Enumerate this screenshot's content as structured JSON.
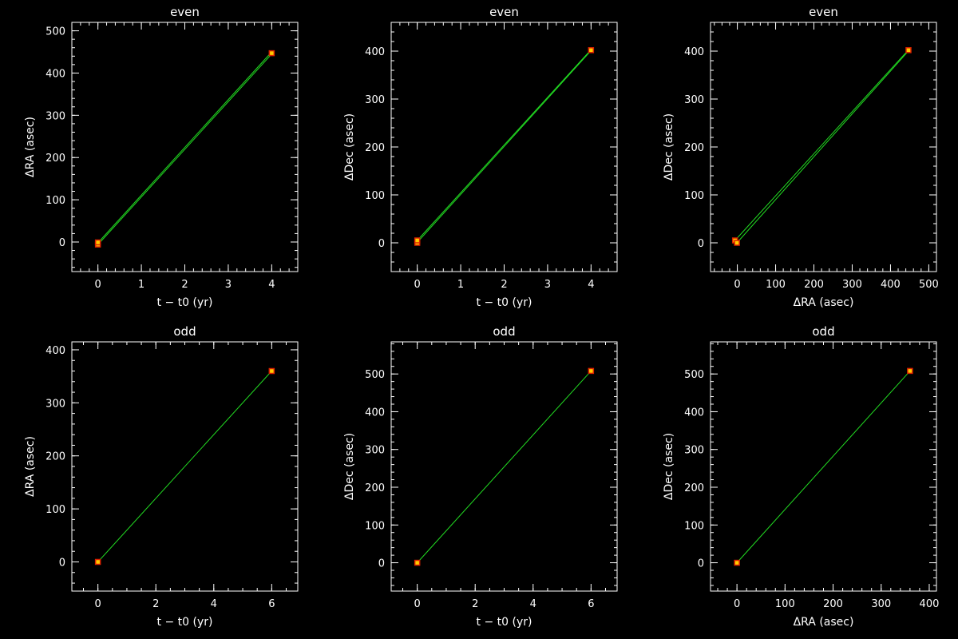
{
  "chart_data": [
    {
      "type": "line",
      "title": "even",
      "xlabel": "t − t0 (yr)",
      "ylabel": "ΔRA (asec)",
      "xlim": [
        -0.6,
        4.6
      ],
      "ylim": [
        -70,
        520
      ],
      "xticks": [
        0,
        1,
        2,
        3,
        4
      ],
      "yticks": [
        0,
        100,
        200,
        300,
        400,
        500
      ],
      "series": [
        {
          "kind": "fit",
          "x": [
            0,
            4
          ],
          "y": [
            -6,
            445
          ]
        },
        {
          "kind": "fit",
          "x": [
            0,
            4
          ],
          "y": [
            -2,
            450
          ]
        },
        {
          "kind": "data",
          "x": [
            0,
            0,
            4
          ],
          "y": [
            -6,
            -1,
            447
          ]
        }
      ]
    },
    {
      "type": "line",
      "title": "even",
      "xlabel": "t − t0 (yr)",
      "ylabel": "ΔDec (asec)",
      "xlim": [
        -0.6,
        4.6
      ],
      "ylim": [
        -60,
        460
      ],
      "xticks": [
        0,
        1,
        2,
        3,
        4
      ],
      "yticks": [
        0,
        100,
        200,
        300,
        400
      ],
      "series": [
        {
          "kind": "fit",
          "x": [
            0,
            4
          ],
          "y": [
            1,
            401
          ]
        },
        {
          "kind": "fit",
          "x": [
            0,
            4
          ],
          "y": [
            5,
            403
          ]
        },
        {
          "kind": "data",
          "x": [
            0,
            0,
            4
          ],
          "y": [
            0,
            5,
            402
          ]
        }
      ]
    },
    {
      "type": "line",
      "title": "even",
      "xlabel": "ΔRA (asec)",
      "ylabel": "ΔDec (asec)",
      "xlim": [
        -70,
        520
      ],
      "ylim": [
        -60,
        460
      ],
      "xticks": [
        0,
        100,
        200,
        300,
        400,
        500
      ],
      "yticks": [
        0,
        100,
        200,
        300,
        400
      ],
      "series": [
        {
          "kind": "fit",
          "x": [
            -6,
            445
          ],
          "y": [
            5,
            401
          ]
        },
        {
          "kind": "fit",
          "x": [
            -1,
            450
          ],
          "y": [
            0,
            403
          ]
        },
        {
          "kind": "data",
          "x": [
            -6,
            -1,
            447
          ],
          "y": [
            5,
            0,
            402
          ]
        }
      ]
    },
    {
      "type": "line",
      "title": "odd",
      "xlabel": "t − t0 (yr)",
      "ylabel": "ΔRA (asec)",
      "xlim": [
        -0.9,
        6.9
      ],
      "ylim": [
        -55,
        415
      ],
      "xticks": [
        0,
        2,
        4,
        6
      ],
      "yticks": [
        0,
        100,
        200,
        300,
        400
      ],
      "series": [
        {
          "kind": "fit",
          "x": [
            0,
            6
          ],
          "y": [
            0,
            360
          ]
        },
        {
          "kind": "data",
          "x": [
            0,
            6
          ],
          "y": [
            0,
            360
          ]
        }
      ]
    },
    {
      "type": "line",
      "title": "odd",
      "xlabel": "t − t0 (yr)",
      "ylabel": "ΔDec (asec)",
      "xlim": [
        -0.9,
        6.9
      ],
      "ylim": [
        -75,
        585
      ],
      "xticks": [
        0,
        2,
        4,
        6
      ],
      "yticks": [
        0,
        100,
        200,
        300,
        400,
        500
      ],
      "series": [
        {
          "kind": "fit",
          "x": [
            0,
            6
          ],
          "y": [
            0,
            508
          ]
        },
        {
          "kind": "data",
          "x": [
            0,
            6
          ],
          "y": [
            0,
            508
          ]
        }
      ]
    },
    {
      "type": "line",
      "title": "odd",
      "xlabel": "ΔRA (asec)",
      "ylabel": "ΔDec (asec)",
      "xlim": [
        -55,
        415
      ],
      "ylim": [
        -75,
        585
      ],
      "xticks": [
        0,
        100,
        200,
        300,
        400
      ],
      "yticks": [
        0,
        100,
        200,
        300,
        400,
        500
      ],
      "series": [
        {
          "kind": "fit",
          "x": [
            0,
            360
          ],
          "y": [
            0,
            508
          ]
        },
        {
          "kind": "data",
          "x": [
            0,
            360
          ],
          "y": [
            0,
            508
          ]
        }
      ]
    }
  ],
  "colors": {
    "background": "#000000",
    "axes": "#ffffff",
    "fit_line": "#22dd22",
    "marker_fill": "#ffcc00",
    "marker_edge": "#dd2200"
  }
}
